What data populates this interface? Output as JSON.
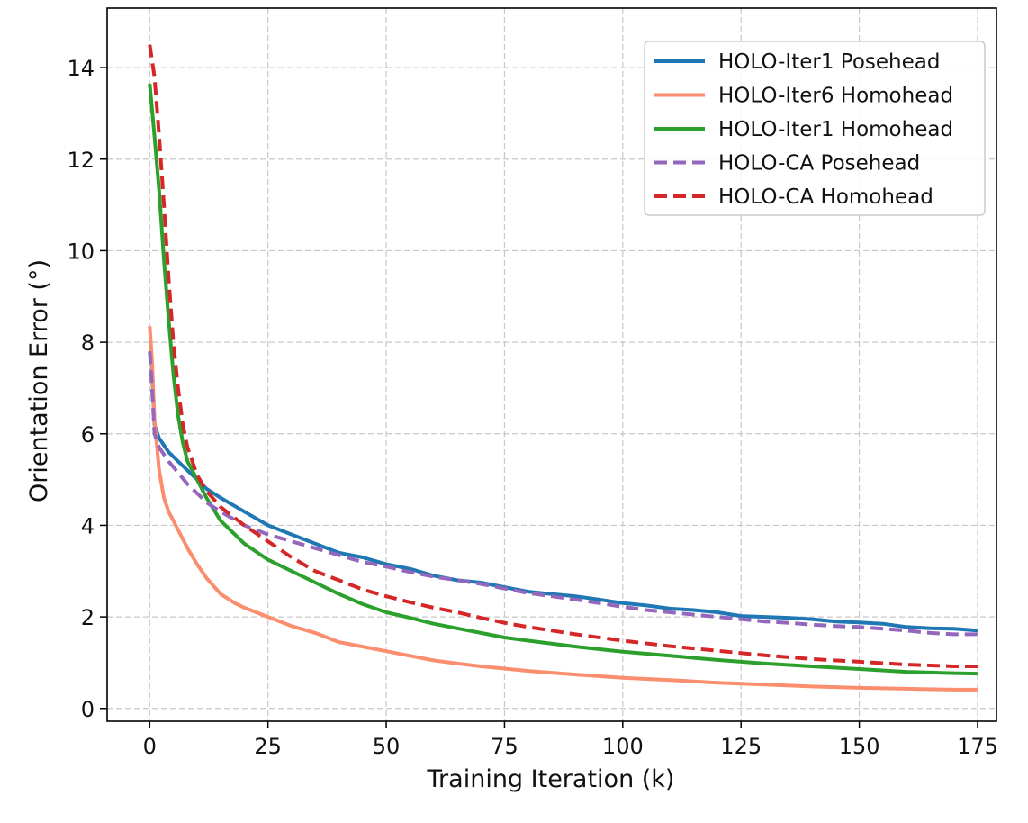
{
  "chart_data": {
    "type": "line",
    "xlabel": "Training Iteration (k)",
    "ylabel": "Orientation Error (°)",
    "xlim": [
      -9,
      179
    ],
    "ylim": [
      -0.28,
      15.3
    ],
    "xticks": [
      0,
      25,
      50,
      75,
      100,
      125,
      150,
      175
    ],
    "yticks": [
      0,
      2,
      4,
      6,
      8,
      10,
      12,
      14
    ],
    "grid": true,
    "legend_position": "top-right",
    "series": [
      {
        "name": "HOLO-Iter1 Posehead",
        "color": "#1f77b4",
        "dash": "solid",
        "points": [
          [
            0.3,
            7.8
          ],
          [
            1,
            6.2
          ],
          [
            2,
            5.9
          ],
          [
            4,
            5.6
          ],
          [
            6,
            5.4
          ],
          [
            8,
            5.2
          ],
          [
            10,
            5.0
          ],
          [
            12,
            4.8
          ],
          [
            15,
            4.6
          ],
          [
            20,
            4.3
          ],
          [
            25,
            4.0
          ],
          [
            30,
            3.8
          ],
          [
            35,
            3.6
          ],
          [
            40,
            3.4
          ],
          [
            45,
            3.3
          ],
          [
            50,
            3.15
          ],
          [
            55,
            3.05
          ],
          [
            60,
            2.9
          ],
          [
            65,
            2.8
          ],
          [
            70,
            2.75
          ],
          [
            75,
            2.65
          ],
          [
            80,
            2.55
          ],
          [
            85,
            2.5
          ],
          [
            90,
            2.45
          ],
          [
            95,
            2.38
          ],
          [
            100,
            2.3
          ],
          [
            105,
            2.25
          ],
          [
            110,
            2.18
          ],
          [
            115,
            2.15
          ],
          [
            120,
            2.1
          ],
          [
            125,
            2.02
          ],
          [
            130,
            2.0
          ],
          [
            135,
            1.98
          ],
          [
            140,
            1.95
          ],
          [
            145,
            1.9
          ],
          [
            150,
            1.88
          ],
          [
            155,
            1.85
          ],
          [
            160,
            1.78
          ],
          [
            165,
            1.75
          ],
          [
            170,
            1.74
          ],
          [
            175,
            1.7
          ]
        ]
      },
      {
        "name": "HOLO-Iter6 Homohead",
        "color": "#fa8e6e",
        "dash": "solid",
        "points": [
          [
            0,
            8.35
          ],
          [
            0.5,
            7.6
          ],
          [
            1,
            6.3
          ],
          [
            2,
            5.2
          ],
          [
            3,
            4.6
          ],
          [
            4,
            4.3
          ],
          [
            6,
            3.9
          ],
          [
            8,
            3.5
          ],
          [
            10,
            3.15
          ],
          [
            12,
            2.85
          ],
          [
            15,
            2.5
          ],
          [
            18,
            2.3
          ],
          [
            20,
            2.2
          ],
          [
            25,
            2.0
          ],
          [
            30,
            1.8
          ],
          [
            35,
            1.65
          ],
          [
            40,
            1.45
          ],
          [
            45,
            1.35
          ],
          [
            50,
            1.25
          ],
          [
            55,
            1.15
          ],
          [
            60,
            1.05
          ],
          [
            65,
            0.98
          ],
          [
            70,
            0.92
          ],
          [
            75,
            0.87
          ],
          [
            80,
            0.82
          ],
          [
            90,
            0.74
          ],
          [
            100,
            0.67
          ],
          [
            110,
            0.62
          ],
          [
            120,
            0.56
          ],
          [
            130,
            0.52
          ],
          [
            140,
            0.48
          ],
          [
            150,
            0.45
          ],
          [
            160,
            0.43
          ],
          [
            170,
            0.41
          ],
          [
            175,
            0.41
          ]
        ]
      },
      {
        "name": "HOLO-Iter1 Homohead",
        "color": "#2ca02c",
        "dash": "solid",
        "points": [
          [
            0,
            13.65
          ],
          [
            1,
            12.5
          ],
          [
            2,
            11.3
          ],
          [
            3,
            9.8
          ],
          [
            4,
            8.5
          ],
          [
            5,
            7.3
          ],
          [
            6,
            6.4
          ],
          [
            7,
            5.8
          ],
          [
            8,
            5.4
          ],
          [
            10,
            5.0
          ],
          [
            12,
            4.6
          ],
          [
            15,
            4.1
          ],
          [
            18,
            3.8
          ],
          [
            20,
            3.6
          ],
          [
            25,
            3.25
          ],
          [
            30,
            3.0
          ],
          [
            35,
            2.75
          ],
          [
            40,
            2.5
          ],
          [
            45,
            2.28
          ],
          [
            50,
            2.1
          ],
          [
            55,
            1.98
          ],
          [
            60,
            1.85
          ],
          [
            65,
            1.75
          ],
          [
            70,
            1.65
          ],
          [
            75,
            1.55
          ],
          [
            80,
            1.48
          ],
          [
            90,
            1.35
          ],
          [
            100,
            1.24
          ],
          [
            110,
            1.15
          ],
          [
            120,
            1.06
          ],
          [
            130,
            0.98
          ],
          [
            140,
            0.92
          ],
          [
            150,
            0.86
          ],
          [
            160,
            0.8
          ],
          [
            170,
            0.77
          ],
          [
            175,
            0.76
          ]
        ]
      },
      {
        "name": "HOLO-CA Posehead",
        "color": "#9467bd",
        "dash": "dashed",
        "points": [
          [
            0,
            7.8
          ],
          [
            0.5,
            7.0
          ],
          [
            1,
            6.0
          ],
          [
            2,
            5.7
          ],
          [
            4,
            5.4
          ],
          [
            6,
            5.15
          ],
          [
            8,
            4.9
          ],
          [
            10,
            4.7
          ],
          [
            12,
            4.5
          ],
          [
            15,
            4.3
          ],
          [
            20,
            4.0
          ],
          [
            25,
            3.8
          ],
          [
            30,
            3.65
          ],
          [
            35,
            3.5
          ],
          [
            40,
            3.35
          ],
          [
            45,
            3.2
          ],
          [
            50,
            3.1
          ],
          [
            55,
            2.98
          ],
          [
            60,
            2.88
          ],
          [
            65,
            2.8
          ],
          [
            70,
            2.72
          ],
          [
            75,
            2.62
          ],
          [
            80,
            2.52
          ],
          [
            85,
            2.45
          ],
          [
            90,
            2.38
          ],
          [
            95,
            2.3
          ],
          [
            100,
            2.22
          ],
          [
            105,
            2.15
          ],
          [
            110,
            2.1
          ],
          [
            115,
            2.05
          ],
          [
            120,
            2.0
          ],
          [
            125,
            1.95
          ],
          [
            130,
            1.9
          ],
          [
            135,
            1.87
          ],
          [
            140,
            1.83
          ],
          [
            145,
            1.8
          ],
          [
            150,
            1.78
          ],
          [
            155,
            1.74
          ],
          [
            160,
            1.7
          ],
          [
            165,
            1.65
          ],
          [
            170,
            1.62
          ],
          [
            175,
            1.62
          ]
        ]
      },
      {
        "name": "HOLO-CA Homohead",
        "color": "#d62728",
        "dash": "dashed",
        "points": [
          [
            0,
            14.5
          ],
          [
            1,
            13.8
          ],
          [
            2,
            12.5
          ],
          [
            3,
            11.0
          ],
          [
            4,
            9.4
          ],
          [
            5,
            8.0
          ],
          [
            6,
            7.0
          ],
          [
            7,
            6.2
          ],
          [
            8,
            5.7
          ],
          [
            10,
            5.1
          ],
          [
            12,
            4.75
          ],
          [
            15,
            4.4
          ],
          [
            20,
            4.0
          ],
          [
            25,
            3.65
          ],
          [
            30,
            3.3
          ],
          [
            35,
            3.0
          ],
          [
            40,
            2.8
          ],
          [
            45,
            2.6
          ],
          [
            50,
            2.45
          ],
          [
            55,
            2.32
          ],
          [
            60,
            2.2
          ],
          [
            65,
            2.1
          ],
          [
            70,
            1.98
          ],
          [
            75,
            1.87
          ],
          [
            80,
            1.78
          ],
          [
            90,
            1.62
          ],
          [
            100,
            1.48
          ],
          [
            110,
            1.36
          ],
          [
            120,
            1.26
          ],
          [
            130,
            1.16
          ],
          [
            140,
            1.08
          ],
          [
            150,
            1.02
          ],
          [
            160,
            0.96
          ],
          [
            170,
            0.92
          ],
          [
            175,
            0.92
          ]
        ]
      }
    ]
  }
}
